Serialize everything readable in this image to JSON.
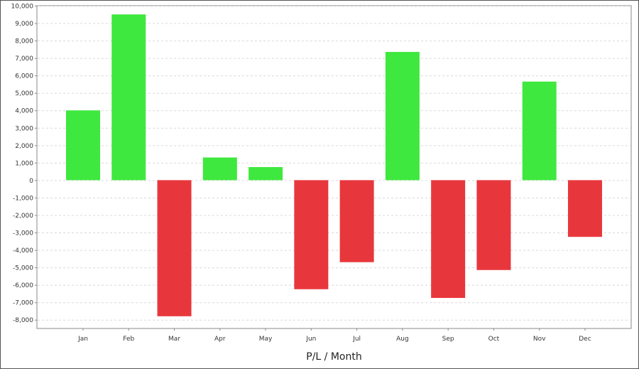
{
  "chart_data": {
    "type": "bar",
    "title": "",
    "xlabel": "P/L / Month",
    "ylabel": "",
    "categories": [
      "Jan",
      "Feb",
      "Mar",
      "Apr",
      "May",
      "Jun",
      "Jul",
      "Aug",
      "Sep",
      "Oct",
      "Nov",
      "Dec"
    ],
    "values": [
      4000,
      9500,
      -7800,
      1300,
      750,
      -6250,
      -4700,
      7350,
      -6750,
      -5150,
      5650,
      -3250
    ],
    "ylim": [
      -8500,
      10000
    ],
    "yticks": [
      10000,
      9000,
      8000,
      7000,
      6000,
      5000,
      4000,
      3000,
      2000,
      1000,
      0,
      -1000,
      -2000,
      -3000,
      -4000,
      -5000,
      -6000,
      -7000,
      -8000
    ],
    "ytick_labels": [
      "10,000",
      "9,000",
      "8,000",
      "7,000",
      "6,000",
      "5,000",
      "4,000",
      "3,000",
      "2,000",
      "1,000",
      "0",
      "-1,000",
      "-2,000",
      "-3,000",
      "-4,000",
      "-5,000",
      "-6,000",
      "-7,000",
      "-8,000"
    ],
    "grid": true,
    "legend": "none",
    "colors": {
      "positive": "#3fe83f",
      "negative": "#e8373c",
      "grid": "#d9d9d9",
      "axis": "#888888"
    }
  }
}
